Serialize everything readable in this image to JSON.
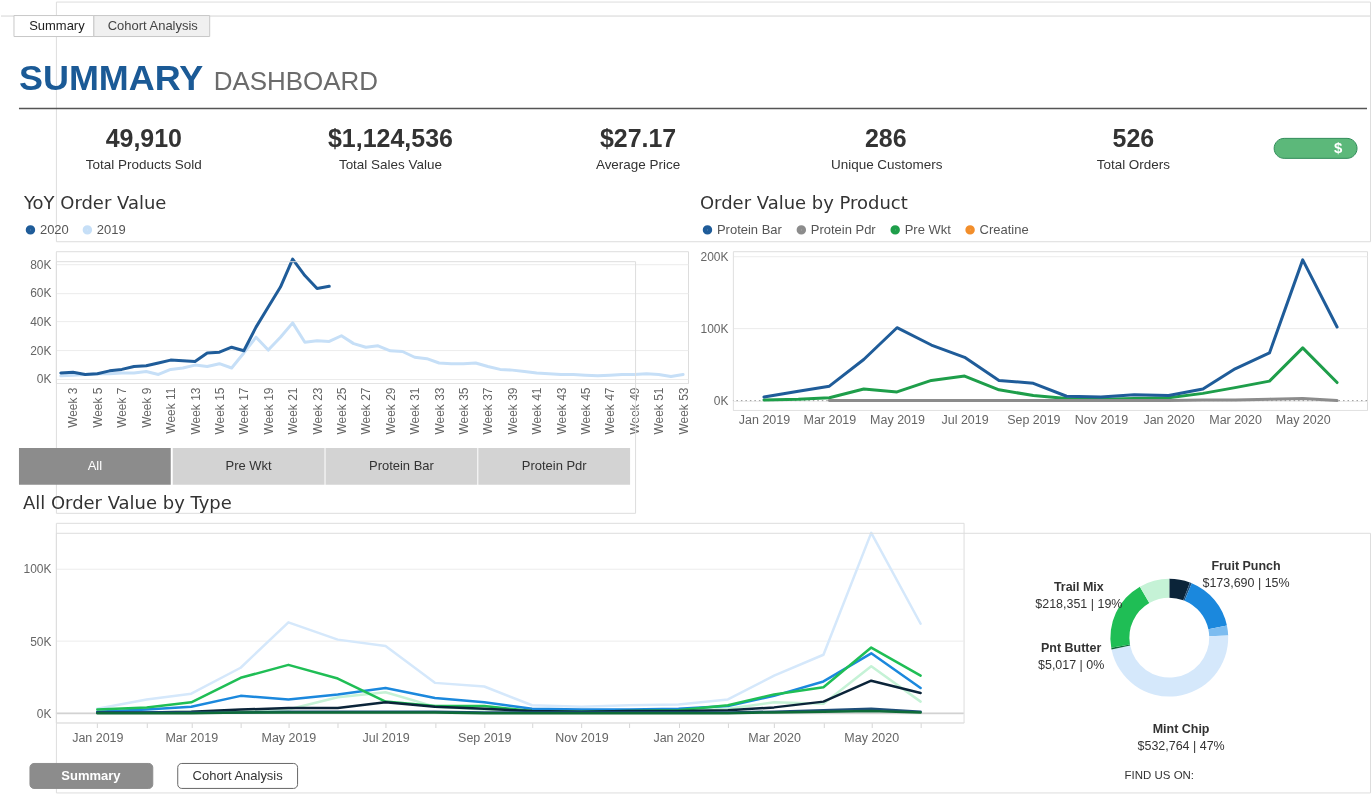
{
  "chart_data": [
    {
      "type": "other",
      "title": "SUMMARY",
      "subtitle": "DASHBOARD",
      "annotations": [
        "Summary",
        "Cohort Analysis",
        "49,910",
        "Total Products Sold",
        "$1,124,536",
        "Total Sales Value",
        "$27.17",
        "Average Price",
        "286",
        "Unique Customers",
        "526",
        "Total Orders",
        "$"
      ]
    },
    {
      "type": "line",
      "title": "YoY Order Value",
      "categories": [
        null,
        "Week 3",
        null,
        "Week 5",
        null,
        "Week 7",
        null,
        "Week 9",
        null,
        "Week 11",
        null,
        "Week 13",
        null,
        "Week 15",
        null,
        "Week 17",
        null,
        "Week 19",
        null,
        "Week 21",
        null,
        "Week 23",
        null,
        "Week 25",
        null,
        "Week 27",
        null,
        "Week 29",
        null,
        "Week 31",
        null,
        "Week 33",
        null,
        "Week 35",
        null,
        "Week 37",
        null,
        "Week 39",
        null,
        "Week 41",
        null,
        "Week 43",
        null,
        "Week 45",
        null,
        "Week 47",
        null,
        "Week 49",
        null,
        "Week 51",
        null,
        "Week 53"
      ],
      "series": [
        {
          "name": "2020",
          "color": "#1f5c99",
          "values": [
            4000,
            4500,
            3000,
            3500,
            5500,
            6500,
            8500,
            9000,
            11000,
            13000,
            12500,
            12000,
            18000,
            18500,
            22000,
            19500,
            36000,
            50000,
            64000,
            83500,
            72000,
            63000,
            64500,
            null,
            null,
            null,
            null,
            null,
            null,
            null,
            null,
            null,
            null,
            null,
            null,
            null,
            null,
            null,
            null,
            null,
            null,
            null,
            null,
            null,
            null,
            null,
            null,
            null,
            null,
            null,
            null,
            null
          ]
        },
        {
          "name": "2019",
          "color": "#c6dff7",
          "values": [
            2000,
            2500,
            3000,
            3500,
            3500,
            4000,
            4000,
            5000,
            3000,
            6500,
            7500,
            9500,
            8500,
            10500,
            7500,
            18000,
            29000,
            20000,
            29000,
            39000,
            25500,
            26500,
            26000,
            30000,
            24500,
            22000,
            23000,
            19500,
            19000,
            15000,
            14000,
            11000,
            10500,
            10500,
            11000,
            8500,
            6500,
            6000,
            5000,
            4000,
            3500,
            3000,
            3000,
            2500,
            2000,
            2500,
            3000,
            3000,
            3500,
            3000,
            1500,
            3000
          ]
        }
      ],
      "ylim": [
        -3000,
        89000
      ],
      "yticks": [
        {
          "value": 0,
          "label": "0K"
        },
        {
          "value": 20000,
          "label": "20K"
        },
        {
          "value": 40000,
          "label": "40K"
        },
        {
          "value": 60000,
          "label": "60K"
        },
        {
          "value": 80000,
          "label": "80K"
        }
      ],
      "grid": "y",
      "legend": "top left"
    },
    {
      "type": "line",
      "title": "Order Value by Product",
      "x": [
        "2019-01",
        "2019-02",
        "2019-03",
        "2019-04",
        "2019-05",
        "2019-06",
        "2019-07",
        "2019-08",
        "2019-09",
        "2019-10",
        "2019-11",
        "2019-12",
        "2020-01",
        "2020-02",
        "2020-03",
        "2020-04",
        "2020-05",
        "2020-06"
      ],
      "series": [
        {
          "name": "Protein Bar",
          "color": "#1f5c99",
          "values": [
            5000,
            13000,
            20000,
            57000,
            101000,
            77000,
            60000,
            28000,
            24000,
            6000,
            5000,
            8000,
            7000,
            16000,
            44000,
            66000,
            195000,
            102000
          ]
        },
        {
          "name": "Protein Pdr",
          "color": "#8c8c8c",
          "values": [
            null,
            null,
            0,
            0,
            0,
            0,
            0,
            0,
            0,
            0,
            0,
            0,
            0,
            1000,
            1000,
            2000,
            3000,
            0
          ]
        },
        {
          "name": "Pre Wkt",
          "color": "#1e9e4a",
          "values": [
            1000,
            2000,
            4000,
            16000,
            12000,
            28000,
            34000,
            15000,
            7000,
            3000,
            2000,
            3000,
            4000,
            10000,
            18000,
            27000,
            73000,
            25000
          ]
        },
        {
          "name": "Creatine",
          "color": "#f28e2b",
          "values": [
            null,
            null,
            null,
            null,
            null,
            null,
            null,
            null,
            null,
            null,
            null,
            null,
            null,
            null,
            null,
            null,
            null,
            null
          ]
        }
      ],
      "xlim": [
        "2018-12-04",
        "2020-06-28"
      ],
      "xticks": [
        {
          "value": "2019-01",
          "label": "Jan 2019"
        },
        {
          "value": "2019-03",
          "label": "Mar 2019"
        },
        {
          "value": "2019-05",
          "label": "May 2019"
        },
        {
          "value": "2019-07",
          "label": "Jul 2019"
        },
        {
          "value": "2019-09",
          "label": "Sep 2019"
        },
        {
          "value": "2019-11",
          "label": "Nov 2019"
        },
        {
          "value": "2020-01",
          "label": "Jan 2020"
        },
        {
          "value": "2020-03",
          "label": "Mar 2020"
        },
        {
          "value": "2020-05",
          "label": "May 2020"
        }
      ],
      "ylim": [
        -13000,
        207000
      ],
      "yticks": [
        {
          "value": 0,
          "label": "0K"
        },
        {
          "value": 100000,
          "label": "100K"
        },
        {
          "value": 200000,
          "label": "200K"
        }
      ],
      "grid": "y",
      "legend": "top left",
      "ref_lines": [
        {
          "axis": "y",
          "value": 0,
          "color": "#9a9a9a",
          "line_style": "dotted"
        }
      ]
    },
    {
      "type": "other",
      "annotations": [
        "All",
        "Pre Wkt",
        "Protein Bar",
        "Protein Pdr"
      ]
    },
    {
      "type": "line",
      "title": "All Order Value by Type",
      "x": [
        "2019-01",
        "2019-02",
        "2019-03",
        "2019-04",
        "2019-05",
        "2019-06",
        "2019-07",
        "2019-08",
        "2019-09",
        "2019-10",
        "2019-11",
        "2019-12",
        "2020-01",
        "2020-02",
        "2020-03",
        "2020-04",
        "2020-05",
        "2020-06"
      ],
      "series": [
        {
          "color": "#0e6b38",
          "values": [
            0,
            0,
            0,
            500,
            500,
            500,
            500,
            500,
            0,
            0,
            0,
            0,
            0,
            0,
            500,
            1000,
            1500,
            500
          ]
        },
        {
          "color": "#1f4e79",
          "values": [
            500,
            500,
            500,
            500,
            1000,
            1000,
            1000,
            1000,
            500,
            500,
            500,
            500,
            500,
            500,
            1000,
            2000,
            3000,
            1000
          ]
        },
        {
          "color": "#0b2439",
          "values": [
            500,
            500,
            1000,
            2500,
            3500,
            3500,
            7500,
            4500,
            3000,
            1500,
            1000,
            1500,
            1500,
            2000,
            4000,
            8000,
            22500,
            14000
          ]
        },
        {
          "color": "#1fbe55",
          "values": [
            2500,
            4000,
            7500,
            24500,
            33500,
            24000,
            8000,
            5000,
            5000,
            1500,
            1000,
            1500,
            2000,
            5500,
            13000,
            18000,
            45500,
            26000
          ]
        },
        {
          "color": "#1b88dd",
          "values": [
            1000,
            2500,
            4500,
            12000,
            9500,
            13000,
            17500,
            10500,
            7500,
            3000,
            2500,
            2500,
            3000,
            5000,
            12000,
            22000,
            41500,
            17500
          ]
        },
        {
          "color": "#c5f2d6",
          "values": [
            500,
            500,
            1000,
            1500,
            2500,
            11000,
            14500,
            4500,
            2500,
            1500,
            1000,
            1000,
            1500,
            3000,
            7500,
            6500,
            32500,
            8000
          ]
        },
        {
          "color": "#d5e8fb",
          "values": [
            3000,
            9500,
            13500,
            31500,
            63000,
            51000,
            46500,
            21000,
            18500,
            5500,
            4500,
            5500,
            6000,
            9500,
            26000,
            40500,
            125000,
            62000
          ]
        }
      ],
      "xlim": [
        "2018-12-06",
        "2020-06-28"
      ],
      "xticks": [
        {
          "value": "2019-01",
          "label": "Jan 2019"
        },
        {
          "value": "2019-02",
          "label": null
        },
        {
          "value": "2019-03",
          "label": "Mar 2019"
        },
        {
          "value": "2019-04",
          "label": null
        },
        {
          "value": "2019-05",
          "label": "May 2019"
        },
        {
          "value": "2019-06",
          "label": null
        },
        {
          "value": "2019-07",
          "label": "Jul 2019"
        },
        {
          "value": "2019-08",
          "label": null
        },
        {
          "value": "2019-09",
          "label": "Sep 2019"
        },
        {
          "value": "2019-10",
          "label": null
        },
        {
          "value": "2019-11",
          "label": "Nov 2019"
        },
        {
          "value": "2019-12",
          "label": null
        },
        {
          "value": "2020-01",
          "label": "Jan 2020"
        },
        {
          "value": "2020-02",
          "label": null
        },
        {
          "value": "2020-03",
          "label": "Mar 2020"
        },
        {
          "value": "2020-04",
          "label": null
        },
        {
          "value": "2020-05",
          "label": "May 2020"
        },
        {
          "value": "2020-06",
          "label": null
        }
      ],
      "ylim": [
        -6500,
        132000
      ],
      "yticks": [
        {
          "value": 0,
          "label": "0K"
        },
        {
          "value": 50000,
          "label": "50K"
        },
        {
          "value": 100000,
          "label": "100K"
        }
      ],
      "grid": "y",
      "ref_lines": [
        {
          "axis": "y",
          "value": 0,
          "color": "#bdbdbd"
        }
      ]
    },
    {
      "type": "donut",
      "categories": [
        null,
        null,
        "Fruit Punch",
        null,
        "Mint Chip",
        "Pnt Butter",
        "Trail Mix",
        null
      ],
      "values": [
        64000,
        6000,
        173690,
        31000,
        532764,
        5017,
        218351,
        93700
      ],
      "colors": [
        "#0b2439",
        "#1f4e79",
        "#1b88dd",
        "#7cbcf0",
        "#d5e8fb",
        "#0e6b38",
        "#1fbe55",
        "#c5f2d6"
      ],
      "value_labels": [
        null,
        null,
        "$173,690 | 15%",
        null,
        "$532,764 | 47%",
        "$5,017 | 0%",
        "$218,351 | 19%",
        null
      ]
    },
    {
      "type": "other",
      "annotations": [
        "Summary",
        "Cohort Analysis",
        "FIND US ON:"
      ]
    }
  ]
}
